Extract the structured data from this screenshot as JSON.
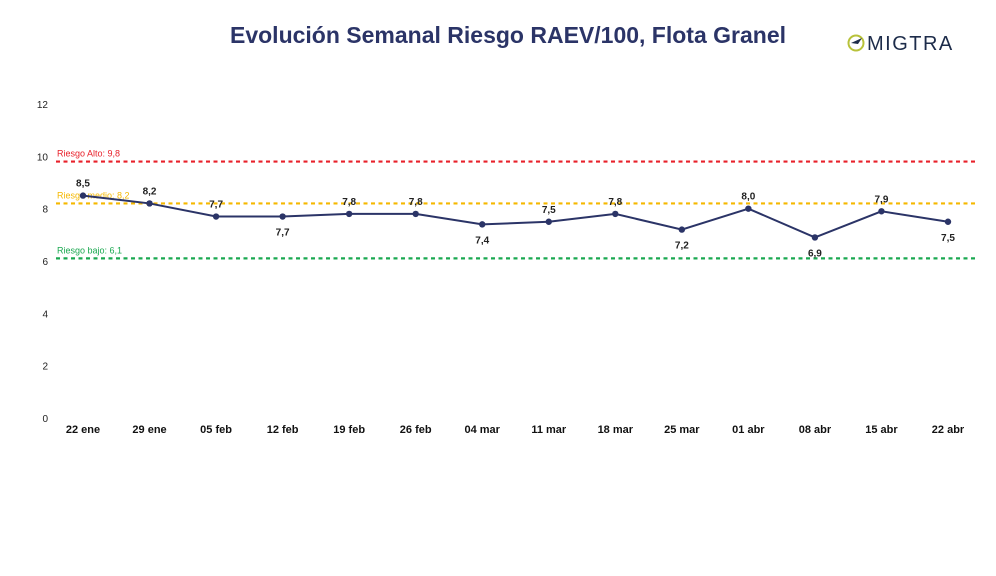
{
  "header": {
    "title": "Evolución Semanal Riesgo RAEV/100, Flota Granel",
    "logo_text": "MIGTRA"
  },
  "colors": {
    "series": "#2b3467",
    "high": "#e8202a",
    "medium": "#f5b800",
    "low": "#1aa850",
    "logo_accent": "#b8c23a",
    "logo_text": "#1d2c4a"
  },
  "chart_data": {
    "type": "line",
    "title": "Evolución Semanal Riesgo RAEV/100, Flota Granel",
    "categories": [
      "22 ene",
      "29 ene",
      "05 feb",
      "12 feb",
      "19 feb",
      "26 feb",
      "04 mar",
      "11 mar",
      "18 mar",
      "25 mar",
      "01 abr",
      "08 abr",
      "15 abr",
      "22 abr"
    ],
    "series": [
      {
        "values": [
          8.5,
          8.2,
          7.7,
          7.7,
          7.8,
          7.8,
          7.4,
          7.5,
          7.8,
          7.2,
          8.0,
          6.9,
          7.9,
          7.5
        ],
        "labels": [
          "8,5",
          "8,2",
          "7,7",
          "7,7",
          "7,8",
          "7,8",
          "7,4",
          "7,5",
          "7,8",
          "7,2",
          "8,0",
          "6,9",
          "7,9",
          "7,5"
        ],
        "label_position": [
          "above",
          "above",
          "above",
          "below",
          "above",
          "above",
          "below",
          "above",
          "above",
          "below",
          "above",
          "below",
          "above",
          "below"
        ]
      }
    ],
    "ylim": [
      0,
      12
    ],
    "yticks": [
      "0",
      "2",
      "4",
      "6",
      "8",
      "10",
      "12"
    ],
    "reference_lines": [
      {
        "label": "Riesgo Alto: 9,8",
        "value": 9.8,
        "color": "#e8202a"
      },
      {
        "label": "Riesgo medio: 8,2",
        "value": 8.2,
        "color": "#f5b800"
      },
      {
        "label": "Riesgo bajo: 6,1",
        "value": 6.1,
        "color": "#1aa850"
      }
    ],
    "grid": false,
    "legend": "none"
  }
}
